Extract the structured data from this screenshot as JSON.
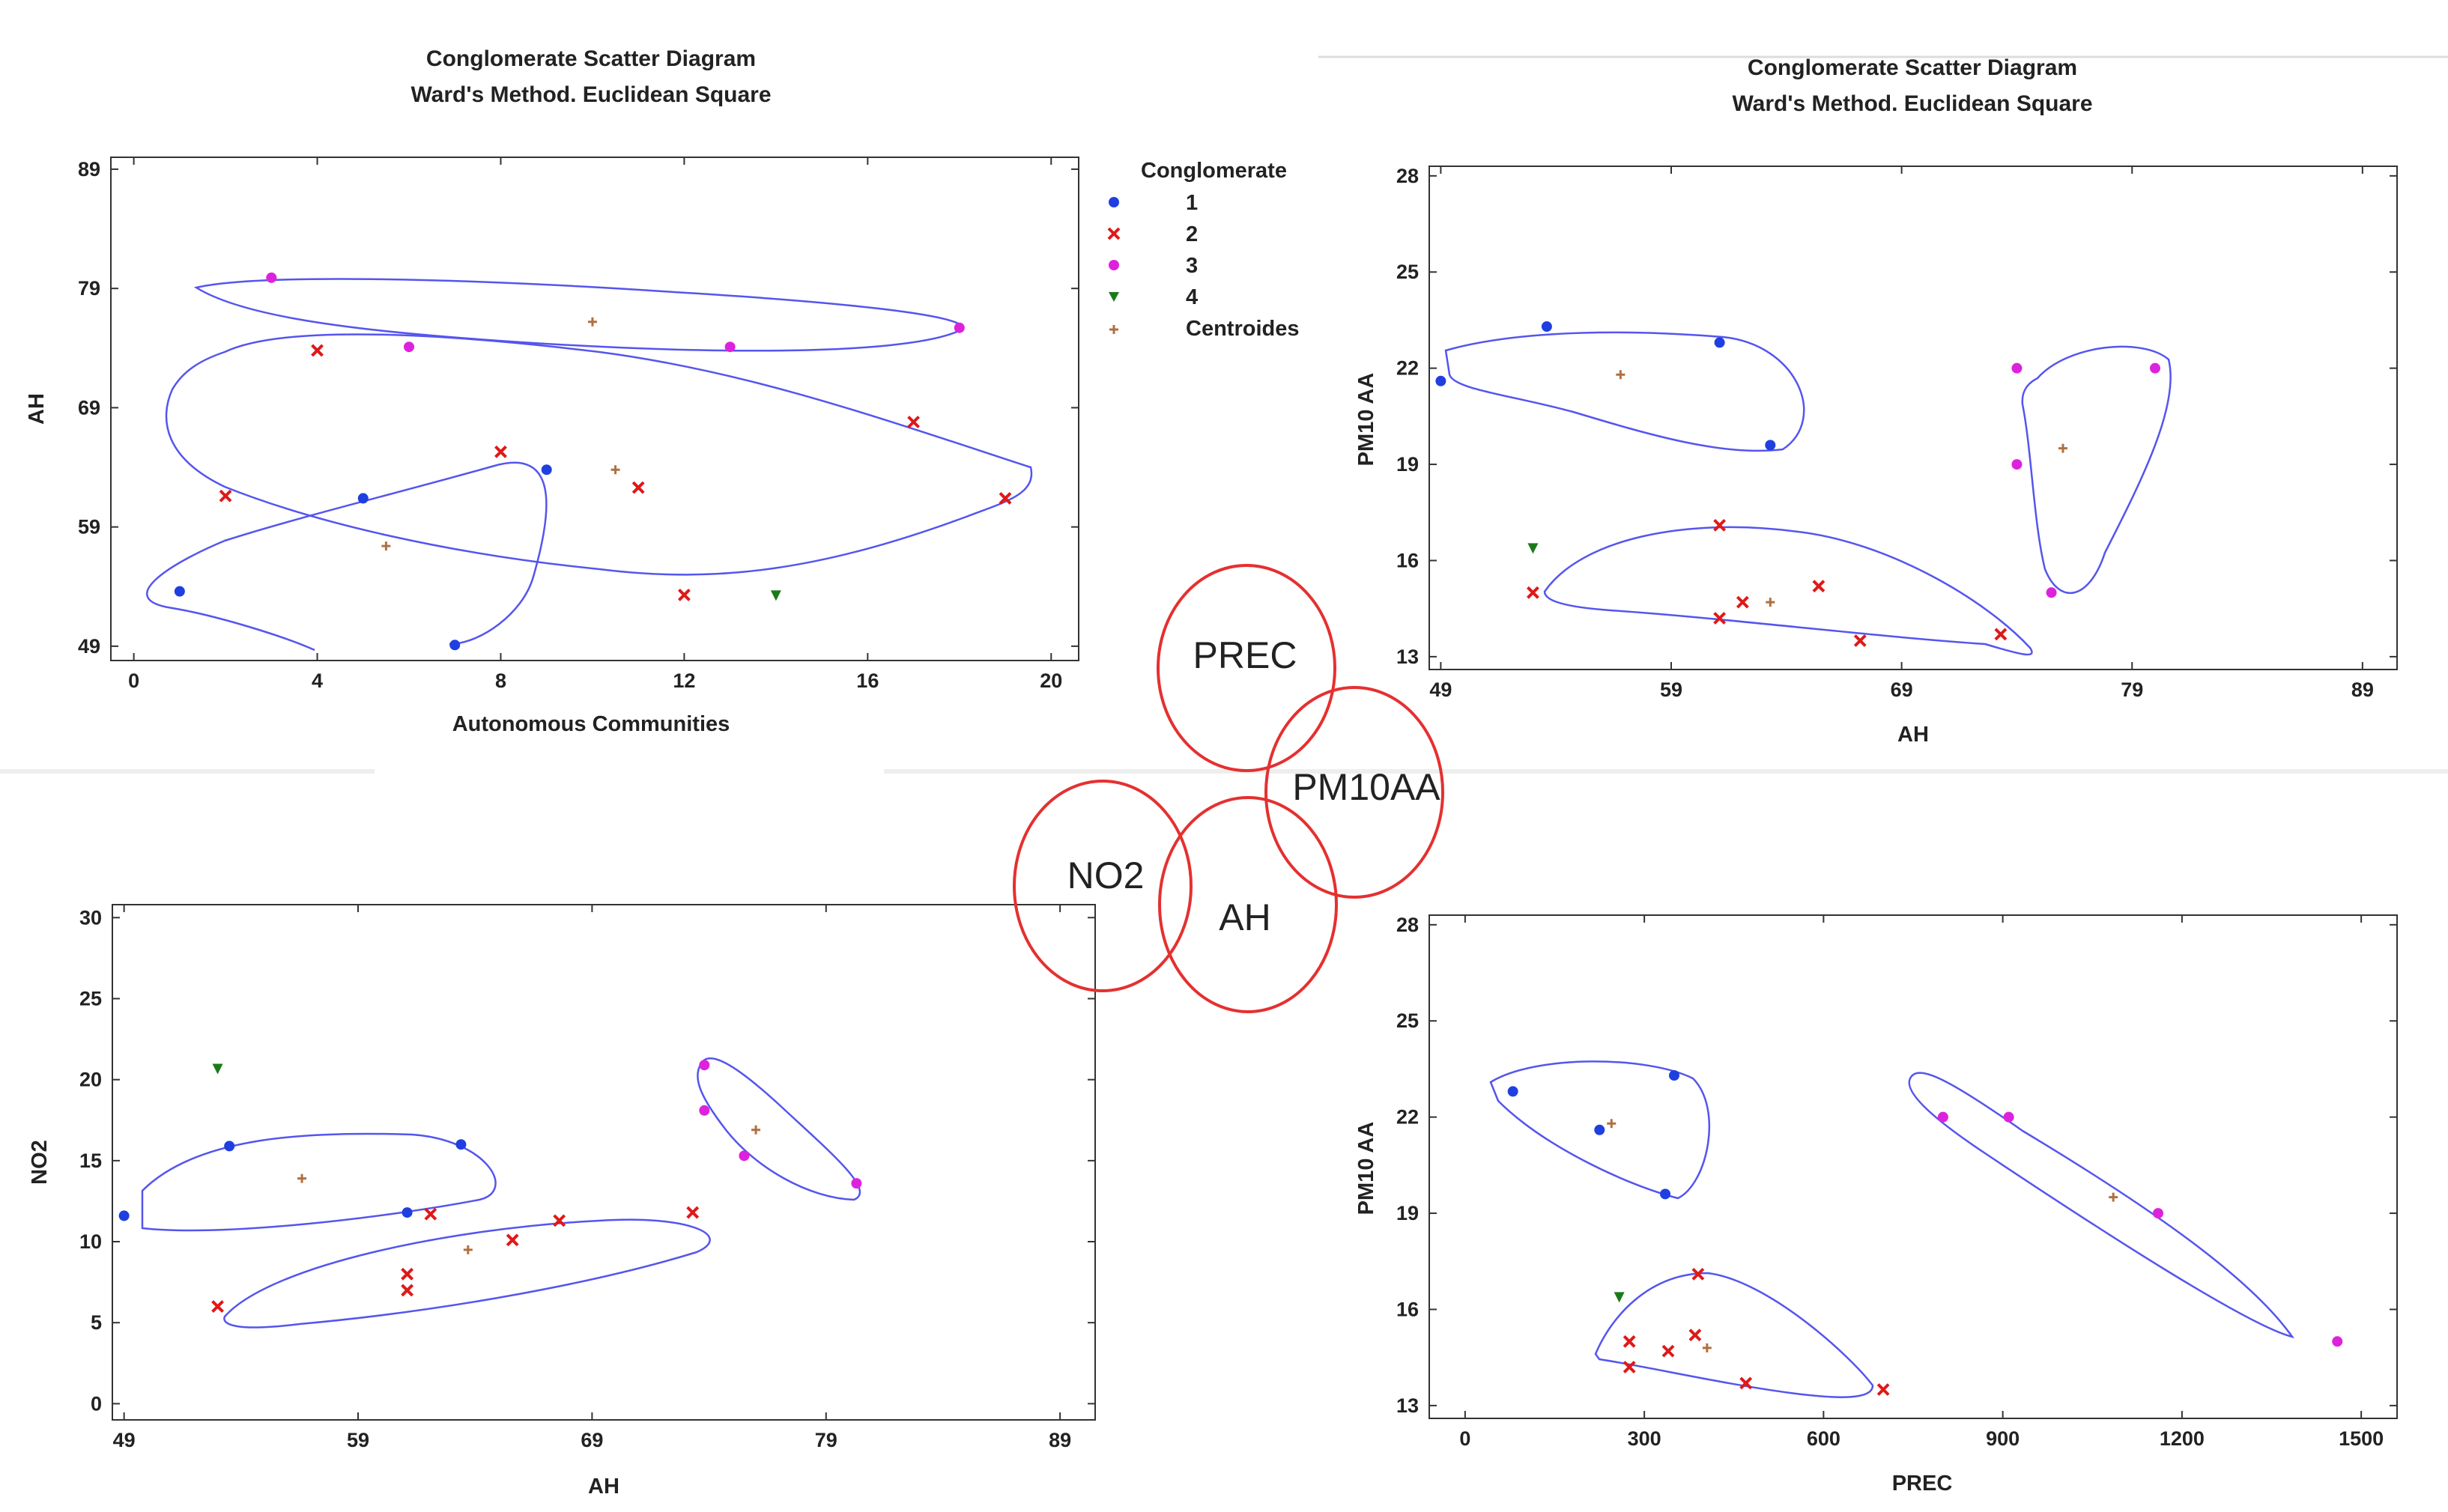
{
  "chart_data": [
    {
      "type": "scatter",
      "title": "Conglomerate Scatter Diagram",
      "subtitle": "Ward's Method. Euclidean Square",
      "xlabel": "Autonomous Communities",
      "ylabel": "AH",
      "xlim": [
        -0.5,
        20.6
      ],
      "ylim": [
        47.8,
        90
      ],
      "xticks": [
        0,
        4,
        8,
        12,
        16,
        20
      ],
      "yticks": [
        49,
        59,
        69,
        79,
        89
      ],
      "legend": {
        "title": "Conglomerate",
        "placement": "right",
        "entries": [
          "1",
          "2",
          "3",
          "4",
          "Centroides"
        ]
      },
      "series": [
        {
          "name": "1",
          "color": "#1f3fe0",
          "marker": "dot",
          "points": [
            [
              1,
              53.6
            ],
            [
              5,
              61.4
            ],
            [
              7,
              49.1
            ],
            [
              9,
              63.8
            ]
          ]
        },
        {
          "name": "2",
          "color": "#e01818",
          "marker": "cross",
          "points": [
            [
              2,
              61.6
            ],
            [
              4,
              73.8
            ],
            [
              8,
              65.3
            ],
            [
              11,
              62.3
            ],
            [
              12,
              53.3
            ],
            [
              17,
              67.8
            ],
            [
              19,
              61.4
            ]
          ]
        },
        {
          "name": "3",
          "color": "#dd22dd",
          "marker": "dot",
          "points": [
            [
              3,
              79.9
            ],
            [
              6,
              74.1
            ],
            [
              13,
              74.1
            ],
            [
              18,
              75.7
            ]
          ]
        },
        {
          "name": "4",
          "color": "#1a7a1a",
          "marker": "triangle",
          "points": [
            [
              14,
              53.3
            ]
          ]
        },
        {
          "name": "Centroides",
          "color": "#b07040",
          "marker": "plus",
          "points": [
            [
              5.5,
              57.4
            ],
            [
              10.5,
              63.8
            ],
            [
              10,
              76.2
            ]
          ]
        }
      ]
    },
    {
      "type": "scatter",
      "title": "Conglomerate Scatter Diagram",
      "subtitle": "Ward's Method. Euclidean Square",
      "xlabel": "AH",
      "ylabel": "PM10 AA",
      "xlim": [
        48.5,
        90.5
      ],
      "ylim": [
        12.6,
        28.3
      ],
      "xticks": [
        49,
        59,
        69,
        79,
        89
      ],
      "yticks": [
        13,
        16,
        19,
        22,
        25,
        28
      ],
      "series": [
        {
          "name": "1",
          "color": "#1f3fe0",
          "marker": "dot",
          "points": [
            [
              49,
              21.6
            ],
            [
              53.6,
              23.3
            ],
            [
              61.1,
              22.8
            ],
            [
              63.3,
              19.6
            ]
          ]
        },
        {
          "name": "2",
          "color": "#e01818",
          "marker": "cross",
          "points": [
            [
              53,
              15
            ],
            [
              61.1,
              17.1
            ],
            [
              61.1,
              14.2
            ],
            [
              62.1,
              14.7
            ],
            [
              65.4,
              15.2
            ],
            [
              67.2,
              13.5
            ],
            [
              73.3,
              13.7
            ]
          ]
        },
        {
          "name": "3",
          "color": "#dd22dd",
          "marker": "dot",
          "points": [
            [
              74,
              22
            ],
            [
              80,
              22
            ],
            [
              74,
              19
            ],
            [
              75.5,
              15
            ]
          ]
        },
        {
          "name": "4",
          "color": "#1a7a1a",
          "marker": "triangle",
          "points": [
            [
              53,
              16.4
            ]
          ]
        },
        {
          "name": "Centroides",
          "color": "#b07040",
          "marker": "plus",
          "points": [
            [
              56.8,
              21.8
            ],
            [
              63.3,
              14.7
            ],
            [
              76,
              19.5
            ]
          ]
        }
      ]
    },
    {
      "type": "scatter",
      "title": "",
      "subtitle": "",
      "xlabel": "AH",
      "ylabel": "NO2",
      "xlim": [
        48.5,
        90.5
      ],
      "ylim": [
        -1,
        30.8
      ],
      "xticks": [
        49,
        59,
        69,
        79,
        89
      ],
      "yticks": [
        0,
        5,
        10,
        15,
        20,
        25,
        30
      ],
      "series": [
        {
          "name": "1",
          "color": "#1f3fe0",
          "marker": "dot",
          "points": [
            [
              49,
              11.6
            ],
            [
              53.5,
              15.9
            ],
            [
              61.1,
              11.8
            ],
            [
              63.4,
              16
            ]
          ]
        },
        {
          "name": "2",
          "color": "#e01818",
          "marker": "cross",
          "points": [
            [
              53,
              6
            ],
            [
              61.1,
              8
            ],
            [
              61.1,
              7
            ],
            [
              62.1,
              11.7
            ],
            [
              65.6,
              10.1
            ],
            [
              67.6,
              11.3
            ],
            [
              73.3,
              11.8
            ]
          ]
        },
        {
          "name": "3",
          "color": "#dd22dd",
          "marker": "dot",
          "points": [
            [
              73.8,
              20.9
            ],
            [
              73.8,
              18.1
            ],
            [
              75.5,
              15.3
            ],
            [
              80.3,
              13.6
            ]
          ]
        },
        {
          "name": "4",
          "color": "#1a7a1a",
          "marker": "triangle",
          "points": [
            [
              53,
              20.7
            ]
          ]
        },
        {
          "name": "Centroides",
          "color": "#b07040",
          "marker": "plus",
          "points": [
            [
              56.6,
              13.9
            ],
            [
              63.7,
              9.5
            ],
            [
              76,
              16.9
            ]
          ]
        }
      ]
    },
    {
      "type": "scatter",
      "title": "",
      "subtitle": "",
      "xlabel": "PREC",
      "ylabel": "PM10 AA",
      "xlim": [
        -60,
        1560
      ],
      "ylim": [
        12.6,
        28.3
      ],
      "xticks": [
        0,
        300,
        600,
        900,
        1200,
        1500
      ],
      "yticks": [
        13,
        16,
        19,
        22,
        25,
        28
      ],
      "series": [
        {
          "name": "1",
          "color": "#1f3fe0",
          "marker": "dot",
          "points": [
            [
              80,
              22.8
            ],
            [
              225,
              21.6
            ],
            [
              350,
              23.3
            ],
            [
              335,
              19.6
            ]
          ]
        },
        {
          "name": "2",
          "color": "#e01818",
          "marker": "cross",
          "points": [
            [
              275,
              15
            ],
            [
              275,
              14.2
            ],
            [
              340,
              14.7
            ],
            [
              390,
              17.1
            ],
            [
              385,
              15.2
            ],
            [
              470,
              13.7
            ],
            [
              700,
              13.5
            ]
          ]
        },
        {
          "name": "3",
          "color": "#dd22dd",
          "marker": "dot",
          "points": [
            [
              800,
              22
            ],
            [
              910,
              22
            ],
            [
              1160,
              19
            ],
            [
              1460,
              15
            ]
          ]
        },
        {
          "name": "4",
          "color": "#1a7a1a",
          "marker": "triangle",
          "points": [
            [
              258,
              16.4
            ]
          ]
        },
        {
          "name": "Centroides",
          "color": "#b07040",
          "marker": "plus",
          "points": [
            [
              245,
              21.8
            ],
            [
              405,
              14.8
            ],
            [
              1085,
              19.5
            ]
          ]
        }
      ]
    }
  ],
  "venn": {
    "labels": [
      "PREC",
      "PM10AA",
      "NO2",
      "AH"
    ],
    "color": "#e53030"
  }
}
